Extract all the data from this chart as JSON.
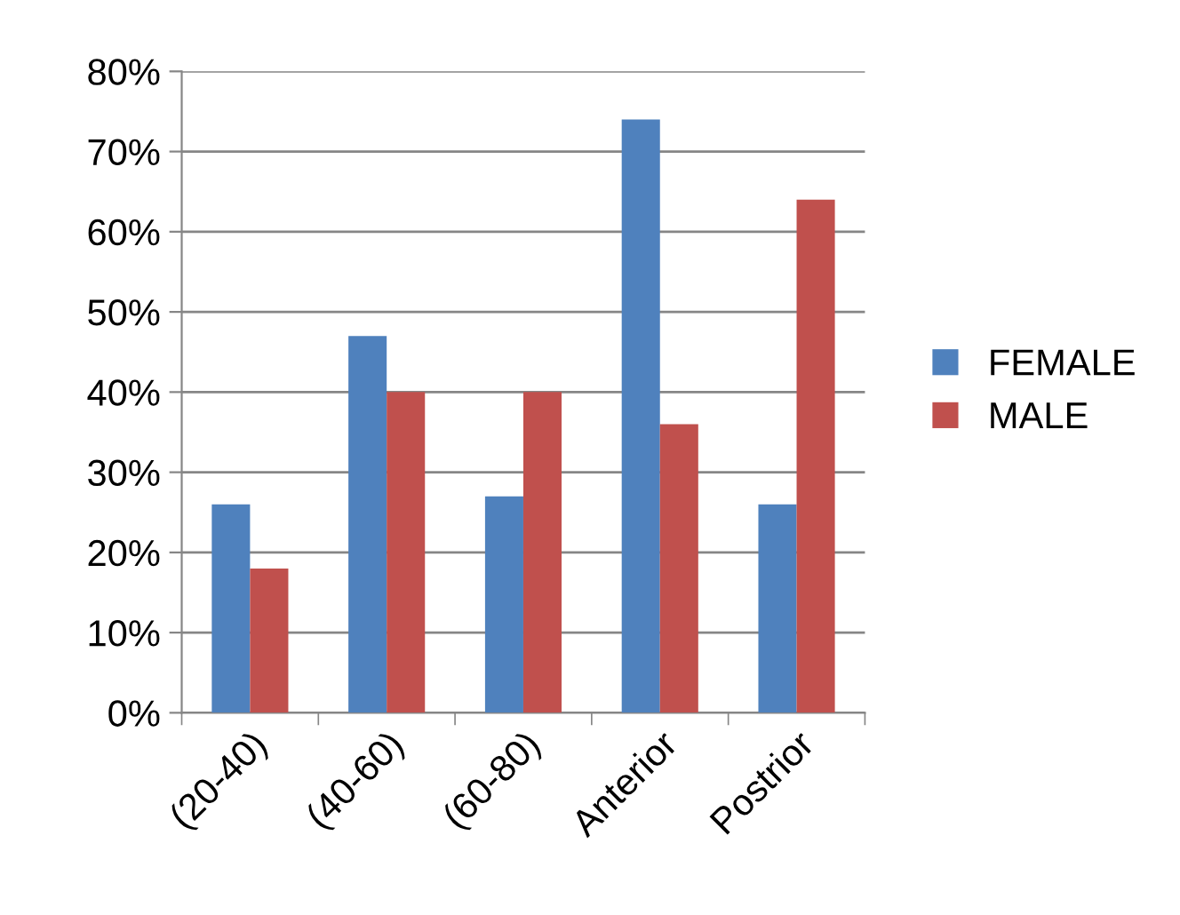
{
  "chart_data": {
    "type": "bar",
    "categories": [
      "(20-40)",
      "(40-60)",
      "(60-80)",
      "Anterior",
      "Postrior"
    ],
    "series": [
      {
        "name": "FEMALE",
        "color": "#4f81bd",
        "values": [
          26,
          47,
          27,
          74,
          26
        ]
      },
      {
        "name": "MALE",
        "color": "#c0504d",
        "values": [
          18,
          40,
          40,
          36,
          64
        ]
      }
    ],
    "ylim": [
      0,
      80
    ],
    "yticks": [
      {
        "value": 0,
        "label": "0%"
      },
      {
        "value": 10,
        "label": "10%"
      },
      {
        "value": 20,
        "label": "20%"
      },
      {
        "value": 30,
        "label": "30%"
      },
      {
        "value": 40,
        "label": "40%"
      },
      {
        "value": 50,
        "label": "50%"
      },
      {
        "value": 60,
        "label": "60%"
      },
      {
        "value": 70,
        "label": "70%"
      },
      {
        "value": 80,
        "label": "80%"
      }
    ],
    "grid": "y",
    "legend": "right"
  }
}
